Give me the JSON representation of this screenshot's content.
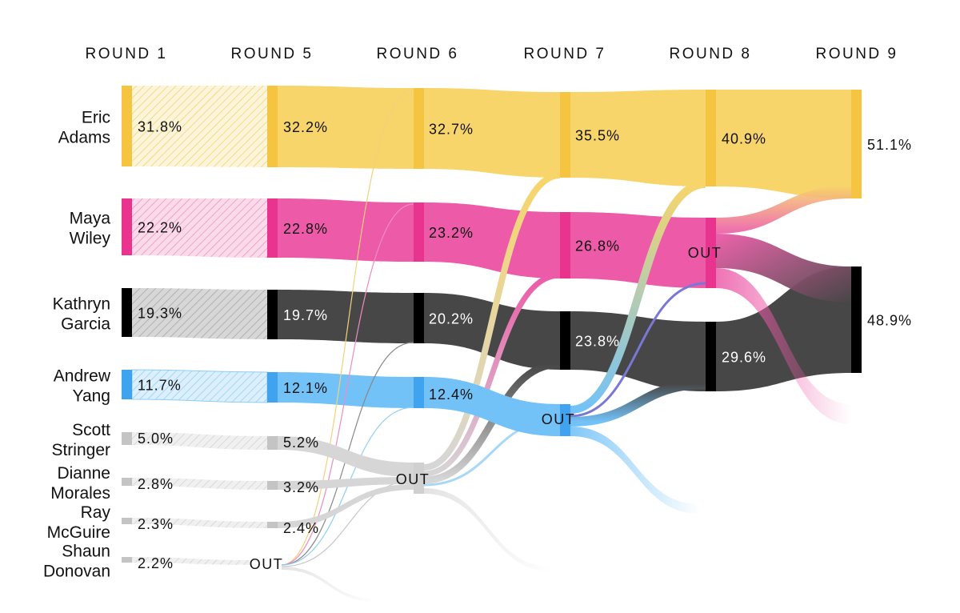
{
  "chart_data": {
    "type": "sankey",
    "title": "",
    "rounds": [
      "ROUND 1",
      "ROUND 5",
      "ROUND 6",
      "ROUND 7",
      "ROUND 8",
      "ROUND 9"
    ],
    "out_label": "OUT",
    "candidates": [
      {
        "id": "adams",
        "name": [
          "Eric",
          "Adams"
        ],
        "color": "#f7d56b",
        "accent": "#f5c542",
        "values": [
          "31.8%",
          "32.2%",
          "32.7%",
          "35.5%",
          "40.9%",
          "51.1%"
        ]
      },
      {
        "id": "wiley",
        "name": [
          "Maya",
          "Wiley"
        ],
        "color": "#ec5aa8",
        "accent": "#e8348f",
        "values": [
          "22.2%",
          "22.8%",
          "23.2%",
          "26.8%",
          null,
          null
        ]
      },
      {
        "id": "garcia",
        "name": [
          "Kathryn",
          "Garcia"
        ],
        "color": "#474747",
        "accent": "#000000",
        "values": [
          "19.3%",
          "19.7%",
          "20.2%",
          "23.8%",
          "29.6%",
          "48.9%"
        ]
      },
      {
        "id": "yang",
        "name": [
          "Andrew",
          "Yang"
        ],
        "color": "#72c2f7",
        "accent": "#3fa3ef",
        "values": [
          "11.7%",
          "12.1%",
          "12.4%",
          null,
          null,
          null
        ]
      },
      {
        "id": "stringer",
        "name": [
          "Scott",
          "Stringer"
        ],
        "color": "#d6d6d6",
        "accent": "#c4c4c4",
        "values": [
          "5.0%",
          "5.2%",
          null,
          null,
          null,
          null
        ]
      },
      {
        "id": "morales",
        "name": [
          "Dianne",
          "Morales"
        ],
        "color": "#d6d6d6",
        "accent": "#c4c4c4",
        "values": [
          "2.8%",
          "3.2%",
          null,
          null,
          null,
          null
        ]
      },
      {
        "id": "mcguire",
        "name": [
          "Ray",
          "McGuire"
        ],
        "color": "#d6d6d6",
        "accent": "#c4c4c4",
        "values": [
          "2.3%",
          "2.4%",
          null,
          null,
          null,
          null
        ]
      },
      {
        "id": "donovan",
        "name": [
          "Shaun",
          "Donovan"
        ],
        "color": "#d6d6d6",
        "accent": "#c4c4c4",
        "values": [
          "2.2%",
          null,
          null,
          null,
          null,
          null
        ]
      }
    ],
    "eliminations": [
      {
        "candidate": "donovan",
        "round": "ROUND 5"
      },
      {
        "candidate": "stringer",
        "round": "ROUND 6"
      },
      {
        "candidate": "morales",
        "round": "ROUND 6"
      },
      {
        "candidate": "mcguire",
        "round": "ROUND 6"
      },
      {
        "candidate": "yang",
        "round": "ROUND 7"
      },
      {
        "candidate": "wiley",
        "round": "ROUND 8"
      }
    ],
    "final_result": {
      "round": "ROUND 9",
      "winner": "adams",
      "winner_share": "51.1%",
      "runner_up": "garcia",
      "runner_up_share": "48.9%"
    }
  }
}
